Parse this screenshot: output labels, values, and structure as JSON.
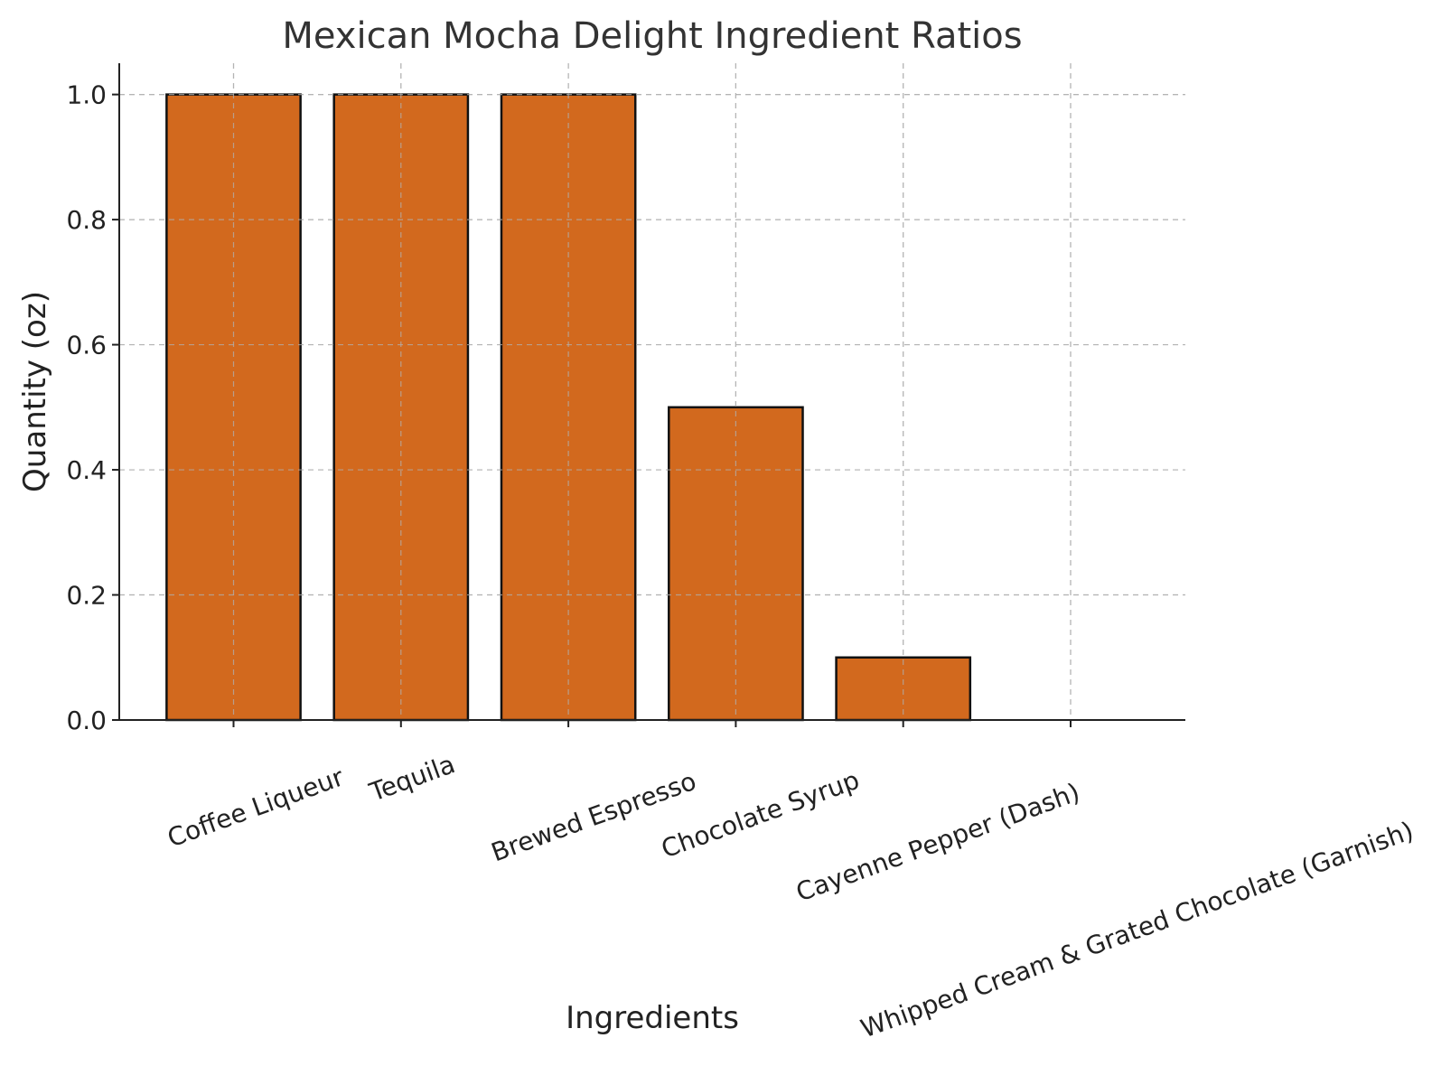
{
  "chart_data": {
    "type": "bar",
    "title": "Mexican Mocha Delight Ingredient Ratios",
    "xlabel": "Ingredients",
    "ylabel": "Quantity (oz)",
    "categories": [
      "Coffee Liqueur",
      "Tequila",
      "Brewed Espresso",
      "Chocolate Syrup",
      "Cayenne Pepper (Dash)",
      "Whipped Cream & Grated Chocolate (Garnish)"
    ],
    "values": [
      1.0,
      1.0,
      1.0,
      0.5,
      0.1,
      0.0
    ],
    "ylim": [
      0,
      1.05
    ],
    "yticks": [
      "0.0",
      "0.2",
      "0.4",
      "0.6",
      "0.8",
      "1.0"
    ],
    "grid": true,
    "bar_color": "#d2691e",
    "edge_color": "#111111"
  }
}
